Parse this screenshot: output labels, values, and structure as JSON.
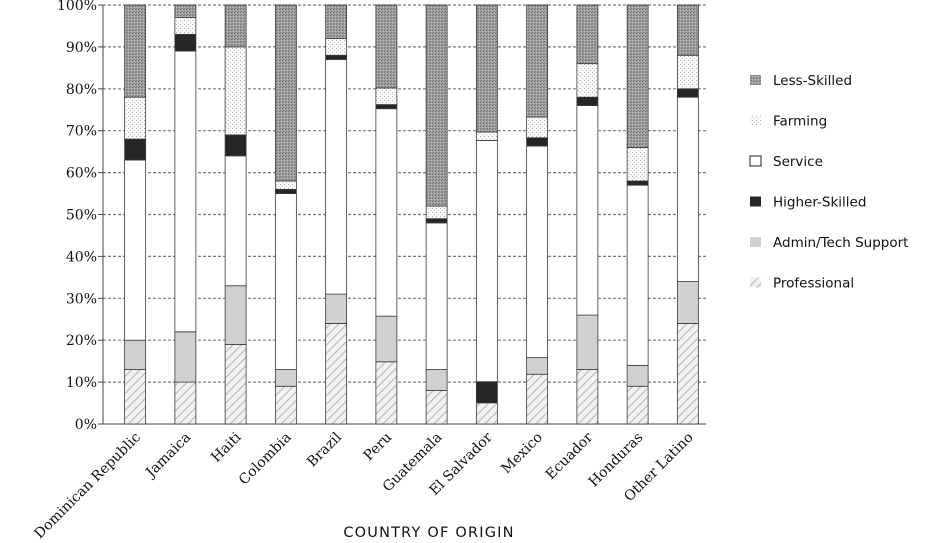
{
  "chart_data": {
    "type": "bar",
    "stacked": true,
    "percent": true,
    "xlabel": "COUNTRY OF ORIGIN",
    "ylabel": "",
    "ylim": [
      0,
      100
    ],
    "y_ticks": [
      "0%",
      "10%",
      "20%",
      "30%",
      "40%",
      "50%",
      "60%",
      "70%",
      "80%",
      "90%",
      "100%"
    ],
    "grid": true,
    "legend_position": "right",
    "categories": [
      "Dominican Republic",
      "Jamaica",
      "Haiti",
      "Colombia",
      "Brazil",
      "Peru",
      "Guatemala",
      "El Salvador",
      "Mexico",
      "Ecuador",
      "Honduras",
      "Other Latino"
    ],
    "series": [
      {
        "name": "Professional",
        "pattern": "diagonal-hatch",
        "color": "#dcdcdc",
        "values": [
          13,
          10,
          19,
          9,
          24,
          15,
          8,
          5,
          12,
          13,
          9,
          24
        ]
      },
      {
        "name": "Admin/Tech Support",
        "pattern": "solid-light",
        "color": "#cfcfcf",
        "values": [
          7,
          12,
          14,
          4,
          7,
          11,
          5,
          0,
          4,
          13,
          5,
          10
        ]
      },
      {
        "name": "Higher-Skilled",
        "pattern": "solid-dark",
        "color": "#2a2a2a",
        "values": [
          0,
          0,
          0,
          0,
          0,
          0,
          0,
          5,
          0,
          0,
          0,
          0
        ]
      },
      {
        "name": "Service",
        "pattern": "solid-white",
        "color": "#ffffff",
        "values": [
          43,
          67,
          31,
          42,
          56,
          50,
          35,
          57,
          51,
          50,
          43,
          44
        ]
      },
      {
        "name": "Higher-Skilled",
        "pattern": "solid-dark",
        "color": "#2a2a2a",
        "values": [
          5,
          4,
          5,
          1,
          1,
          1,
          1,
          0,
          2,
          2,
          1,
          2
        ]
      },
      {
        "name": "Farming",
        "pattern": "dotted",
        "color": "#f4f4f4",
        "values": [
          10,
          4,
          21,
          2,
          4,
          4,
          3,
          2,
          5,
          8,
          8,
          8
        ]
      },
      {
        "name": "Less-Skilled",
        "pattern": "crosshatch",
        "color": "#9a9a9a",
        "values": [
          22,
          3,
          10,
          42,
          8,
          20,
          48,
          30,
          27,
          14,
          34,
          12
        ]
      }
    ],
    "legend": [
      {
        "label": "Less-Skilled",
        "pattern": "crosshatch"
      },
      {
        "label": "Farming",
        "pattern": "dotted"
      },
      {
        "label": "Service",
        "pattern": "solid-white"
      },
      {
        "label": "Higher-Skilled",
        "pattern": "solid-dark"
      },
      {
        "label": "Admin/Tech Support",
        "pattern": "solid-light"
      },
      {
        "label": "Professional",
        "pattern": "diagonal-hatch"
      }
    ]
  }
}
